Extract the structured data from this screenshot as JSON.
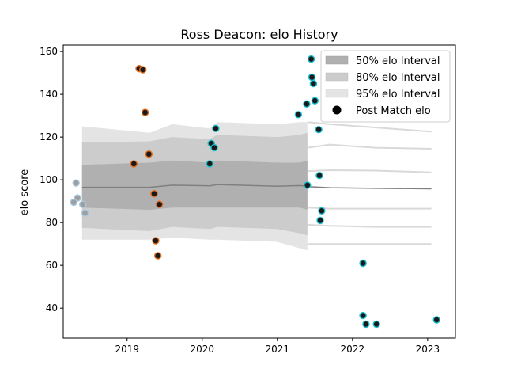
{
  "chart_data": {
    "type": "scatter",
    "title": "Ross Deacon: elo History",
    "xlabel": "",
    "ylabel": "elo score",
    "xlim": [
      2018.15,
      2023.37
    ],
    "ylim": [
      26,
      163
    ],
    "x_ticks": [
      2019,
      2020,
      2021,
      2022,
      2023
    ],
    "y_ticks": [
      40,
      60,
      80,
      100,
      120,
      140,
      160
    ],
    "legend_position": "top-right",
    "legend": {
      "band50": "50% elo Interval",
      "band80": "80% elo Interval",
      "band95": "95% elo Interval",
      "points": "Post Match elo"
    },
    "colors": {
      "band50": "#b0b0b0",
      "band80": "#cccccc",
      "band95": "#e4e4e4",
      "mean_line": "#808080",
      "point_fill": "#1a1a1a",
      "edge_early": "#a8c8e0",
      "edge_mid": "#e06a1a",
      "edge_late": "#17bfcf"
    },
    "bands": {
      "left": {
        "x": [
          2018.4,
          2019.3,
          2019.6,
          2020.1,
          2020.2,
          2021.0,
          2021.3,
          2021.4
        ],
        "mean": [
          96.5,
          96.5,
          97.5,
          97.2,
          97.8,
          97.0,
          97.3,
          97.0
        ],
        "p50": [
          [
            87,
            107
          ],
          [
            86,
            108
          ],
          [
            87,
            109
          ],
          [
            87,
            108
          ],
          [
            87,
            109
          ],
          [
            87,
            108
          ],
          [
            87,
            108
          ],
          [
            86,
            109
          ]
        ],
        "p80": [
          [
            77.5,
            117.5
          ],
          [
            76,
            118
          ],
          [
            78,
            120
          ],
          [
            77,
            119
          ],
          [
            78,
            121
          ],
          [
            77,
            120
          ],
          [
            75,
            121
          ],
          [
            74,
            122
          ]
        ],
        "p95": [
          [
            72,
            125
          ],
          [
            72,
            122
          ],
          [
            73,
            126
          ],
          [
            72,
            124
          ],
          [
            72,
            127
          ],
          [
            71,
            126
          ],
          [
            68,
            127
          ],
          [
            67,
            127
          ]
        ]
      },
      "right": {
        "x": [
          2021.4,
          2021.7,
          2022.3,
          2023.05
        ],
        "mean": [
          96.8,
          96.3,
          96.0,
          95.8
        ],
        "p50": [
          [
            87,
            104
          ],
          [
            86.5,
            104.5
          ],
          [
            86.5,
            104.3
          ],
          [
            86.5,
            103.5
          ]
        ],
        "p80": [
          [
            79,
            115
          ],
          [
            78.5,
            116.5
          ],
          [
            78,
            115
          ],
          [
            78,
            114.5
          ]
        ],
        "p95": [
          [
            70,
            127
          ],
          [
            70,
            126
          ],
          [
            70,
            124.5
          ],
          [
            70,
            122.5
          ]
        ]
      }
    },
    "points": [
      {
        "x": 2018.32,
        "y": 98.5,
        "group": "early"
      },
      {
        "x": 2018.34,
        "y": 91.5,
        "group": "early"
      },
      {
        "x": 2018.29,
        "y": 89.5,
        "group": "early"
      },
      {
        "x": 2018.41,
        "y": 88.5,
        "group": "early"
      },
      {
        "x": 2018.44,
        "y": 84.5,
        "group": "early"
      },
      {
        "x": 2019.09,
        "y": 107.5,
        "group": "mid"
      },
      {
        "x": 2019.16,
        "y": 152,
        "group": "mid"
      },
      {
        "x": 2019.21,
        "y": 151.5,
        "group": "mid"
      },
      {
        "x": 2019.24,
        "y": 131.5,
        "group": "mid"
      },
      {
        "x": 2019.29,
        "y": 112,
        "group": "mid"
      },
      {
        "x": 2019.36,
        "y": 93.5,
        "group": "mid"
      },
      {
        "x": 2019.38,
        "y": 71.5,
        "group": "mid"
      },
      {
        "x": 2019.41,
        "y": 64.5,
        "group": "mid"
      },
      {
        "x": 2019.43,
        "y": 88.5,
        "group": "mid"
      },
      {
        "x": 2020.1,
        "y": 107.5,
        "group": "late"
      },
      {
        "x": 2020.12,
        "y": 117,
        "group": "late"
      },
      {
        "x": 2020.16,
        "y": 115,
        "group": "late"
      },
      {
        "x": 2020.18,
        "y": 124,
        "group": "late"
      },
      {
        "x": 2021.28,
        "y": 130.5,
        "group": "late"
      },
      {
        "x": 2021.39,
        "y": 135.5,
        "group": "late"
      },
      {
        "x": 2021.4,
        "y": 97.5,
        "group": "late"
      },
      {
        "x": 2021.45,
        "y": 156.5,
        "group": "late"
      },
      {
        "x": 2021.46,
        "y": 148,
        "group": "late"
      },
      {
        "x": 2021.48,
        "y": 145,
        "group": "late"
      },
      {
        "x": 2021.5,
        "y": 137,
        "group": "late"
      },
      {
        "x": 2021.55,
        "y": 123.5,
        "group": "late"
      },
      {
        "x": 2021.56,
        "y": 102,
        "group": "late"
      },
      {
        "x": 2021.57,
        "y": 81,
        "group": "late"
      },
      {
        "x": 2021.59,
        "y": 85.5,
        "group": "late"
      },
      {
        "x": 2022.14,
        "y": 61,
        "group": "late"
      },
      {
        "x": 2022.14,
        "y": 36.5,
        "group": "late"
      },
      {
        "x": 2022.18,
        "y": 32.5,
        "group": "late"
      },
      {
        "x": 2022.32,
        "y": 32.5,
        "group": "late"
      },
      {
        "x": 2023.12,
        "y": 34.5,
        "group": "late"
      }
    ]
  }
}
